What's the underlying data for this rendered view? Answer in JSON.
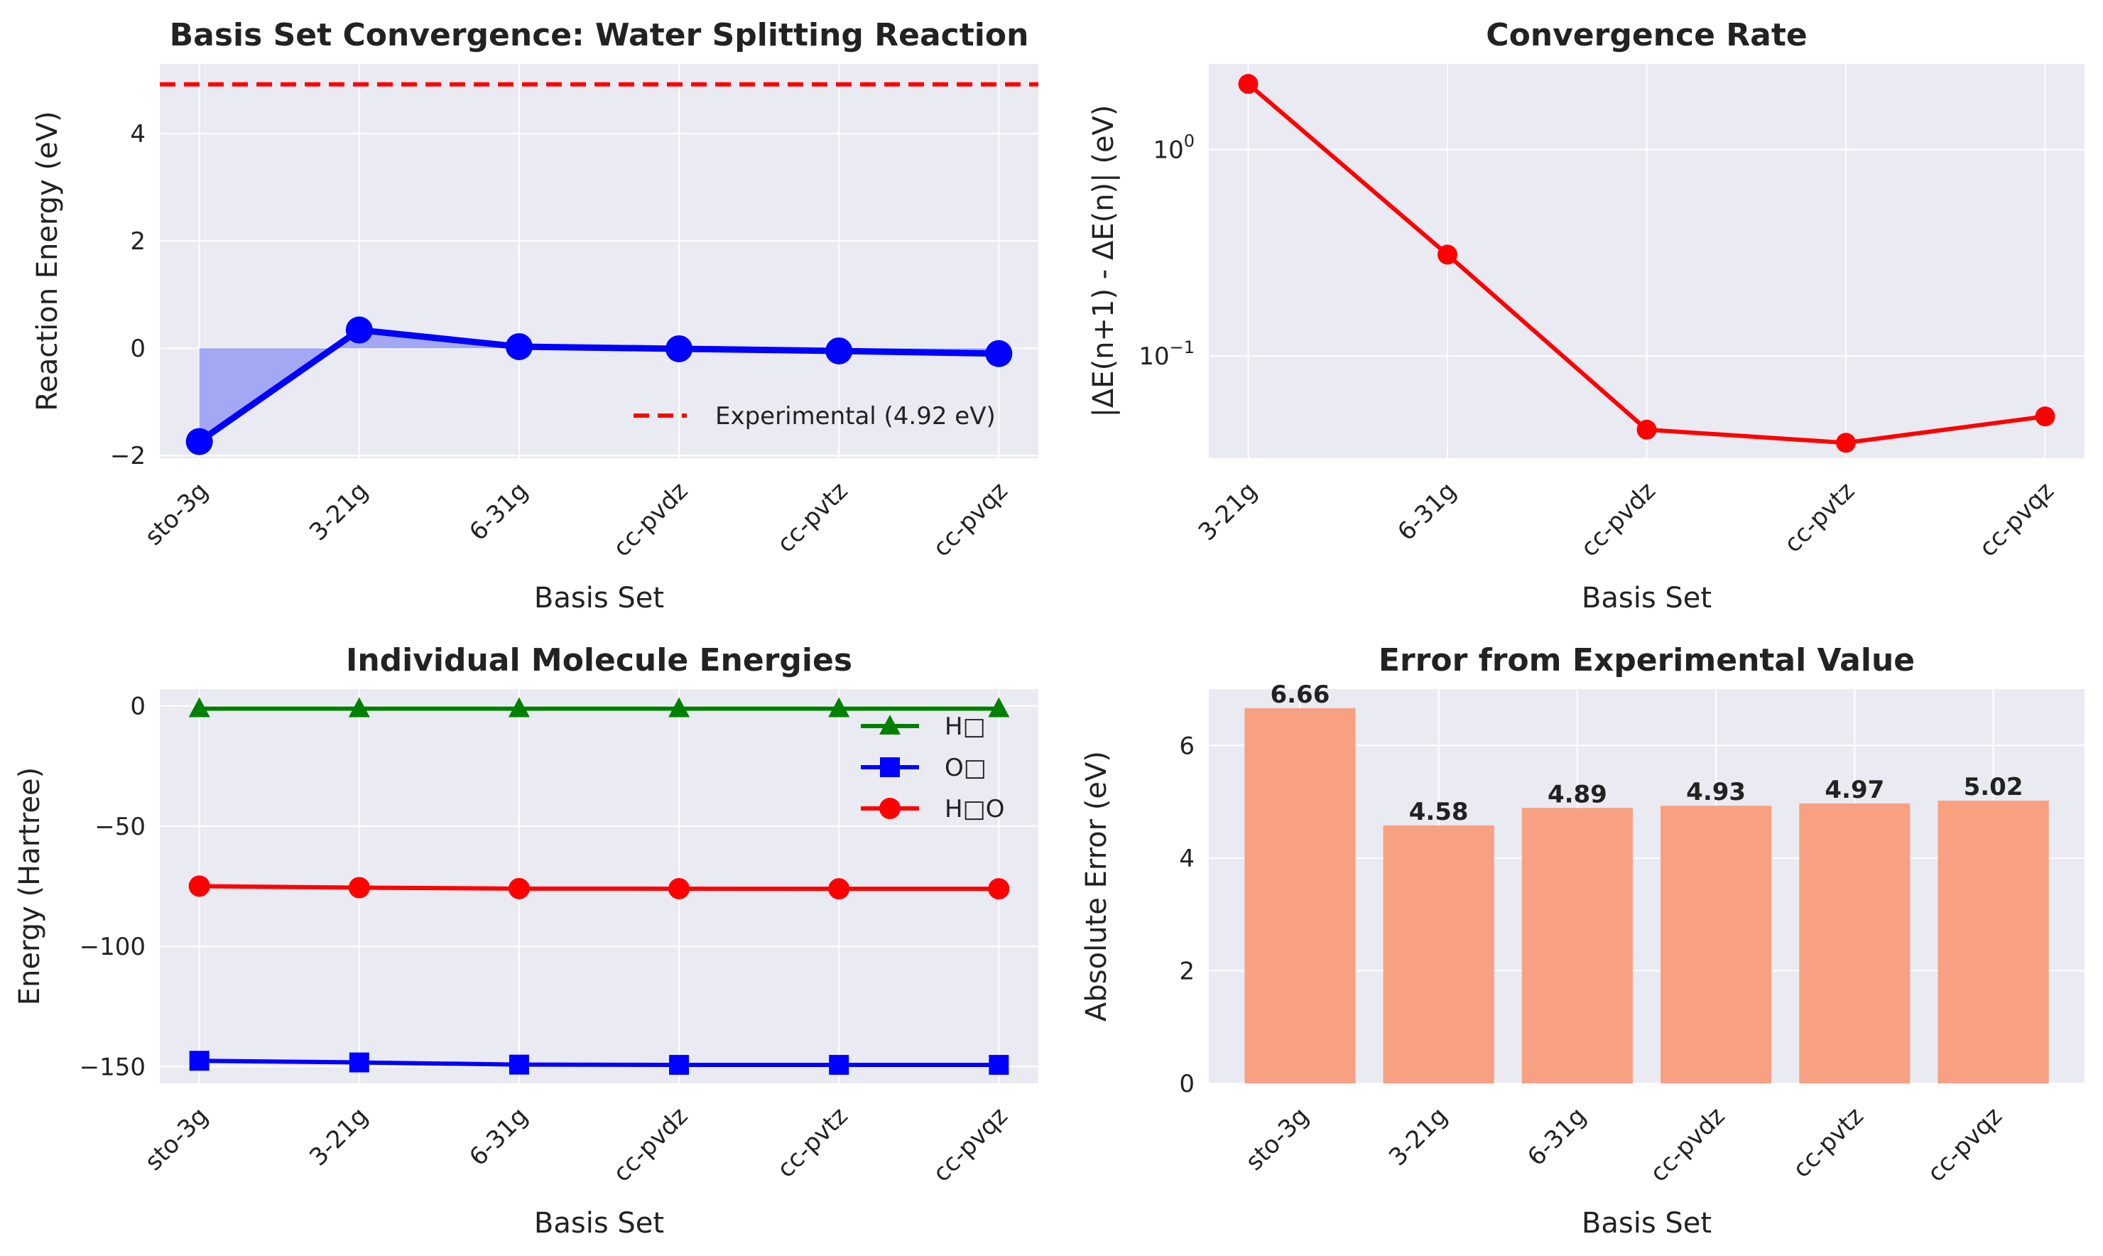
{
  "chart_data": [
    {
      "id": "reaction",
      "type": "line",
      "title": "Basis Set Convergence: Water Splitting Reaction",
      "xlabel": "Basis Set",
      "ylabel": "Reaction Energy (eV)",
      "categories": [
        "sto-3g",
        "3-21g",
        "6-31g",
        "cc-pvdz",
        "cc-pvtz",
        "cc-pvqz"
      ],
      "values": [
        -1.74,
        0.34,
        0.03,
        -0.01,
        -0.05,
        -0.1
      ],
      "reference_line": {
        "value": 4.92,
        "label": "Experimental (4.92 eV)",
        "color": "#ff0000",
        "style": "dashed"
      },
      "line_color": "#0000ff",
      "fill_color": "#a3a8f4",
      "ylim": [
        -2.05,
        5.3
      ],
      "yticks": [
        -2,
        0,
        2,
        4
      ],
      "ytick_labels": [
        "−2",
        "0",
        "2",
        "4"
      ],
      "grid": true,
      "legend_position": "lower right"
    },
    {
      "id": "convergence",
      "type": "line",
      "title": "Convergence Rate",
      "xlabel": "Basis Set",
      "ylabel": "|ΔE(n+1) - ΔE(n)| (eV)",
      "yscale": "log",
      "categories": [
        "3-21g",
        "6-31g",
        "cc-pvdz",
        "cc-pvtz",
        "cc-pvqz"
      ],
      "values": [
        2.08,
        0.31,
        0.044,
        0.038,
        0.051
      ],
      "line_color": "#ff0000",
      "ylim": [
        0.032,
        2.6
      ],
      "yticks": [
        0.1,
        1
      ],
      "ytick_labels": [
        {
          "base": "10",
          "exp": "−1"
        },
        {
          "base": "10",
          "exp": "0"
        }
      ],
      "grid": true
    },
    {
      "id": "molecules",
      "type": "line",
      "title": "Individual Molecule Energies",
      "xlabel": "Basis Set",
      "ylabel": "Energy (Hartree)",
      "categories": [
        "sto-3g",
        "3-21g",
        "6-31g",
        "cc-pvdz",
        "cc-pvtz",
        "cc-pvqz"
      ],
      "series": [
        {
          "name": "H□",
          "marker": "triangle",
          "color": "#008000",
          "values": [
            -1.12,
            -1.12,
            -1.13,
            -1.13,
            -1.13,
            -1.13
          ]
        },
        {
          "name": "O□",
          "marker": "square",
          "color": "#0000ff",
          "values": [
            -147.6,
            -148.3,
            -149.2,
            -149.3,
            -149.3,
            -149.3
          ]
        },
        {
          "name": "H□O",
          "marker": "circle",
          "color": "#ff0000",
          "values": [
            -74.96,
            -75.59,
            -75.98,
            -76.02,
            -76.06,
            -76.07
          ]
        }
      ],
      "ylim": [
        -157,
        7
      ],
      "yticks": [
        0,
        -50,
        -100,
        -150
      ],
      "ytick_labels": [
        "0",
        "−50",
        "−100",
        "−150"
      ],
      "grid": true,
      "legend_position": "upper right"
    },
    {
      "id": "error",
      "type": "bar",
      "title": "Error from Experimental Value",
      "xlabel": "Basis Set",
      "ylabel": "Absolute Error (eV)",
      "categories": [
        "sto-3g",
        "3-21g",
        "6-31g",
        "cc-pvdz",
        "cc-pvtz",
        "cc-pvqz"
      ],
      "values": [
        6.66,
        4.58,
        4.89,
        4.93,
        4.97,
        5.02
      ],
      "value_labels": [
        "6.66",
        "4.58",
        "4.89",
        "4.93",
        "4.97",
        "5.02"
      ],
      "bar_color": "#f7a182",
      "ylim": [
        0,
        7.0
      ],
      "yticks": [
        0,
        2,
        4,
        6
      ],
      "ytick_labels": [
        "0",
        "2",
        "4",
        "6"
      ],
      "grid": true
    }
  ]
}
